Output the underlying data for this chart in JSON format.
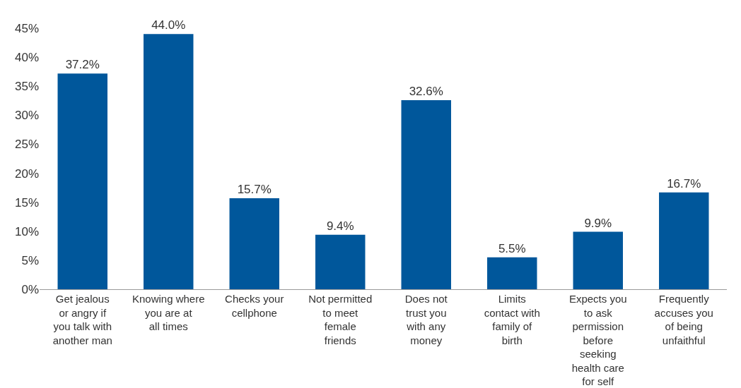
{
  "chart_data": {
    "type": "bar",
    "categories": [
      "Get jealous or angry if you talk with another man",
      "Knowing where you are at all times",
      "Checks your cellphone",
      "Not permitted to meet female friends",
      "Does not trust you with any money",
      "Limits contact with family of birth",
      "Expects you to ask permission before seeking health care for self",
      "Frequently accuses you of being unfaithful"
    ],
    "values": [
      37.2,
      44.0,
      15.7,
      9.4,
      32.6,
      5.5,
      9.9,
      16.7
    ],
    "value_labels": [
      "37.2%",
      "44.0%",
      "15.7%",
      "9.4%",
      "32.6%",
      "5.5%",
      "9.9%",
      "16.7%"
    ],
    "color": "#00579b",
    "ylim": [
      0,
      45
    ],
    "yticks": [
      {
        "value": 0,
        "label": "0%"
      },
      {
        "value": 5,
        "label": "5%"
      },
      {
        "value": 10,
        "label": "10%"
      },
      {
        "value": 15,
        "label": "15%"
      },
      {
        "value": 20,
        "label": "20%"
      },
      {
        "value": 25,
        "label": "25%"
      },
      {
        "value": 30,
        "label": "30%"
      },
      {
        "value": 35,
        "label": "35%"
      },
      {
        "value": 40,
        "label": "40%"
      },
      {
        "value": 45,
        "label": "45%"
      }
    ],
    "grid": false
  }
}
